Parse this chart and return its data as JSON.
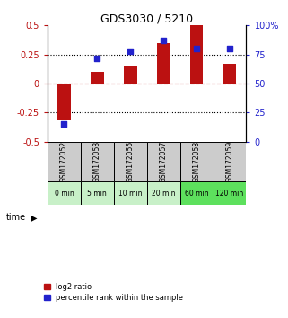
{
  "title": "GDS3030 / 5210",
  "samples": [
    "GSM172052",
    "GSM172053",
    "GSM172055",
    "GSM172057",
    "GSM172058",
    "GSM172059"
  ],
  "time_labels": [
    "0 min",
    "5 min",
    "10 min",
    "20 min",
    "60 min",
    "120 min"
  ],
  "log2_ratio": [
    -0.32,
    0.1,
    0.15,
    0.35,
    0.5,
    0.17
  ],
  "percentile_rank": [
    15,
    72,
    78,
    87,
    80,
    80
  ],
  "bar_color": "#BB1111",
  "dot_color": "#2222CC",
  "ylim_left": [
    -0.5,
    0.5
  ],
  "ylim_right": [
    0,
    100
  ],
  "yticks_left": [
    -0.5,
    -0.25,
    0,
    0.25,
    0.5
  ],
  "yticks_right": [
    0,
    25,
    50,
    75,
    100
  ],
  "ytick_labels_right": [
    "0",
    "25",
    "50",
    "75",
    "100%"
  ],
  "hline_dotted": [
    -0.25,
    0.25
  ],
  "hline_red_dashed": 0,
  "time_colors": [
    "#c8f0c8",
    "#c8f0c8",
    "#c8f0c8",
    "#c8f0c8",
    "#5de05d",
    "#5de05d"
  ],
  "sample_bg": "#cccccc",
  "bar_width": 0.4,
  "dot_size": 22,
  "legend_labels": [
    "log2 ratio",
    "percentile rank within the sample"
  ]
}
